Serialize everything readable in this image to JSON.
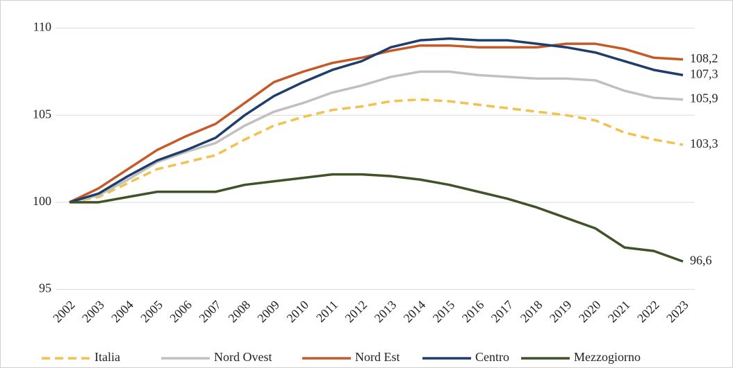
{
  "chart_data": {
    "type": "line",
    "categories": [
      "2002",
      "2003",
      "2004",
      "2005",
      "2006",
      "2007",
      "2008",
      "2009",
      "2010",
      "2011",
      "2012",
      "2013",
      "2014",
      "2015",
      "2016",
      "2017",
      "2018",
      "2019",
      "2020",
      "2021",
      "2022",
      "2023"
    ],
    "series": [
      {
        "name": "Italia",
        "color": "#f2c14e",
        "dashed": true,
        "values": [
          100,
          100.3,
          101.1,
          101.9,
          102.3,
          102.7,
          103.6,
          104.4,
          104.9,
          105.3,
          105.5,
          105.8,
          105.9,
          105.8,
          105.6,
          105.4,
          105.2,
          105.0,
          104.7,
          104.0,
          103.6,
          103.3
        ],
        "value_labels": [
          null,
          null,
          null,
          null,
          null,
          null,
          null,
          null,
          null,
          null,
          null,
          null,
          null,
          null,
          null,
          null,
          null,
          null,
          null,
          null,
          null,
          "103,3"
        ]
      },
      {
        "name": "Nord Ovest",
        "color": "#c0c0c0",
        "values": [
          100,
          100.4,
          101.3,
          102.3,
          102.9,
          103.4,
          104.4,
          105.2,
          105.7,
          106.3,
          106.7,
          107.2,
          107.5,
          107.5,
          107.3,
          107.2,
          107.1,
          107.1,
          107.0,
          106.4,
          106.0,
          105.9
        ],
        "value_labels": [
          null,
          null,
          null,
          null,
          null,
          null,
          null,
          null,
          null,
          null,
          null,
          null,
          null,
          null,
          null,
          null,
          null,
          null,
          null,
          null,
          null,
          "105,9"
        ]
      },
      {
        "name": "Nord Est",
        "color": "#c55a28",
        "values": [
          100,
          100.8,
          101.9,
          103.0,
          103.8,
          104.5,
          105.7,
          106.9,
          107.5,
          108.0,
          108.3,
          108.7,
          109.0,
          109.0,
          108.9,
          108.9,
          108.9,
          109.1,
          109.1,
          108.8,
          108.3,
          108.2
        ],
        "value_labels": [
          null,
          null,
          null,
          null,
          null,
          null,
          null,
          null,
          null,
          null,
          null,
          null,
          null,
          null,
          null,
          null,
          null,
          null,
          null,
          null,
          null,
          "108,2"
        ]
      },
      {
        "name": "Centro",
        "color": "#1f3d6b",
        "values": [
          100,
          100.5,
          101.5,
          102.4,
          103.0,
          103.7,
          105.0,
          106.1,
          106.9,
          107.6,
          108.1,
          108.9,
          109.3,
          109.4,
          109.3,
          109.3,
          109.1,
          108.9,
          108.6,
          108.1,
          107.6,
          107.3
        ],
        "value_labels": [
          null,
          null,
          null,
          null,
          null,
          null,
          null,
          null,
          null,
          null,
          null,
          null,
          null,
          null,
          null,
          null,
          null,
          null,
          null,
          null,
          null,
          "107,3"
        ]
      },
      {
        "name": "Mezzogiorno",
        "color": "#3f5228",
        "values": [
          100,
          100.0,
          100.3,
          100.6,
          100.6,
          100.6,
          101.0,
          101.2,
          101.4,
          101.6,
          101.6,
          101.5,
          101.3,
          101.0,
          100.6,
          100.2,
          99.7,
          99.1,
          98.5,
          97.4,
          97.2,
          96.6
        ],
        "value_labels": [
          null,
          null,
          null,
          null,
          null,
          null,
          null,
          null,
          null,
          null,
          null,
          null,
          null,
          null,
          null,
          null,
          null,
          null,
          null,
          null,
          null,
          "96,6"
        ]
      }
    ],
    "ylim": [
      94.5,
      110.5
    ],
    "yticks": [
      95,
      100,
      105,
      110
    ],
    "grid": true,
    "legend": "bottom"
  }
}
